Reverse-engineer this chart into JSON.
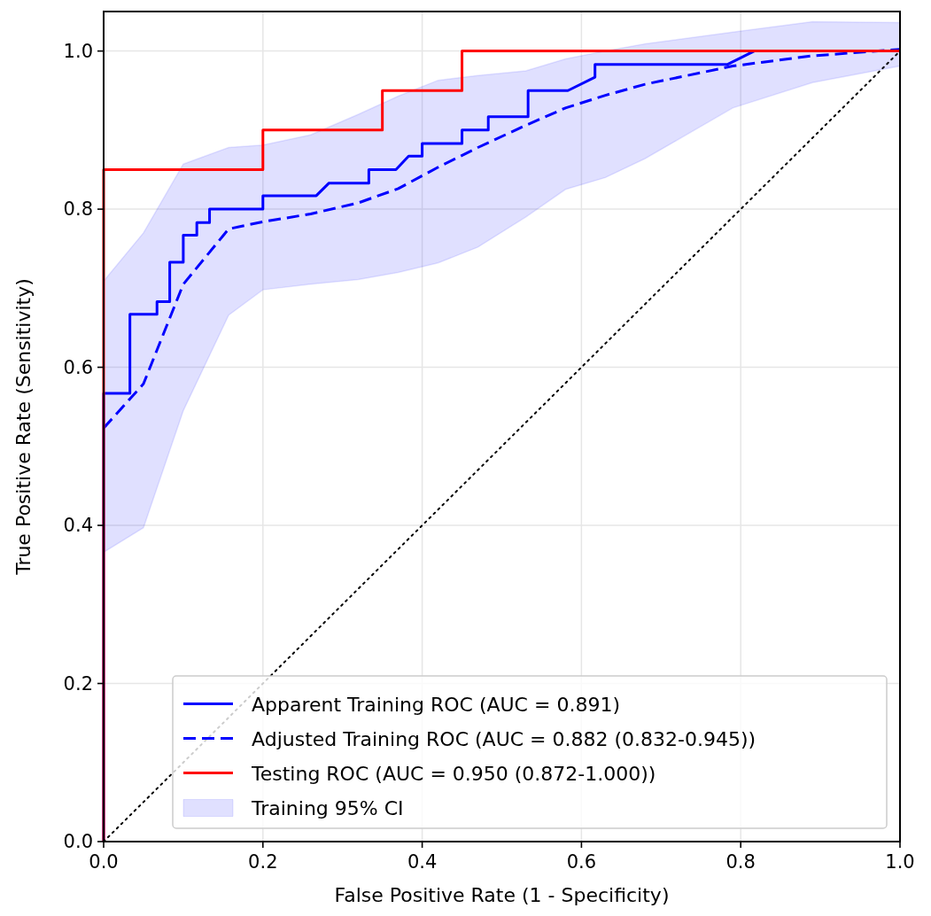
{
  "chart_data": {
    "type": "line",
    "xlabel": "False Positive Rate (1 - Specificity)",
    "ylabel": "True Positive Rate (Sensitivity)",
    "xlim": [
      0,
      1
    ],
    "ylim": [
      0,
      1.05
    ],
    "xticks": [
      {
        "value": 0,
        "label": "0.0"
      },
      {
        "value": 0.2,
        "label": "0.2"
      },
      {
        "value": 0.4,
        "label": "0.4"
      },
      {
        "value": 0.6,
        "label": "0.6"
      },
      {
        "value": 0.8,
        "label": "0.8"
      },
      {
        "value": 1,
        "label": "1.0"
      }
    ],
    "yticks": [
      {
        "value": 0,
        "label": "0.0"
      },
      {
        "value": 0.2,
        "label": "0.2"
      },
      {
        "value": 0.4,
        "label": "0.4"
      },
      {
        "value": 0.6,
        "label": "0.6"
      },
      {
        "value": 0.8,
        "label": "0.8"
      },
      {
        "value": 1,
        "label": "1.0"
      }
    ],
    "grid": true,
    "legend": "bottom right",
    "annotations": [
      "Training 95% CI"
    ],
    "series": [
      {
        "name": "Apparent Training ROC (AUC = 0.891)",
        "color": "#0000ff",
        "line_style": "solid",
        "x": [
          0,
          0,
          0.033,
          0.033,
          0.067,
          0.067,
          0.083,
          0.083,
          0.1,
          0.1,
          0.117,
          0.117,
          0.133,
          0.133,
          0.2,
          0.2,
          0.267,
          0.283,
          0.333,
          0.333,
          0.367,
          0.383,
          0.4,
          0.4,
          0.45,
          0.45,
          0.483,
          0.483,
          0.533,
          0.533,
          0.583,
          0.617,
          0.617,
          0.783,
          0.817,
          1.0
        ],
        "values": [
          0,
          0.567,
          0.567,
          0.667,
          0.667,
          0.683,
          0.683,
          0.733,
          0.733,
          0.767,
          0.767,
          0.783,
          0.783,
          0.8,
          0.8,
          0.817,
          0.817,
          0.833,
          0.833,
          0.85,
          0.85,
          0.867,
          0.867,
          0.883,
          0.883,
          0.9,
          0.9,
          0.917,
          0.917,
          0.95,
          0.95,
          0.967,
          0.983,
          0.983,
          1.0,
          1.0
        ]
      },
      {
        "name": "Adjusted Training ROC (AUC = 0.882 (0.832-0.945))",
        "color": "#0000ff",
        "line_style": "dashed",
        "x": [
          0,
          0.05,
          0.1,
          0.157,
          0.2,
          0.26,
          0.32,
          0.37,
          0.42,
          0.47,
          0.53,
          0.58,
          0.63,
          0.68,
          0.79,
          0.89,
          1.0
        ],
        "values": [
          0.523,
          0.579,
          0.705,
          0.775,
          0.784,
          0.794,
          0.808,
          0.826,
          0.853,
          0.878,
          0.906,
          0.928,
          0.944,
          0.958,
          0.981,
          0.994,
          1.002
        ],
        "lower": [
          0.366,
          0.397,
          0.545,
          0.666,
          0.698,
          0.705,
          0.711,
          0.72,
          0.732,
          0.752,
          0.79,
          0.825,
          0.84,
          0.864,
          0.928,
          0.96,
          0.981
        ],
        "upper": [
          0.709,
          0.77,
          0.857,
          0.878,
          0.881,
          0.894,
          0.92,
          0.943,
          0.963,
          0.969,
          0.975,
          0.99,
          1.0,
          1.009,
          1.024,
          1.037,
          1.036
        ]
      },
      {
        "name": "Testing ROC (AUC = 0.950 (0.872-1.000))",
        "color": "#ff0000",
        "line_style": "solid",
        "x": [
          0,
          0,
          0.2,
          0.2,
          0.35,
          0.35,
          0.45,
          0.45,
          1.0
        ],
        "values": [
          0,
          0.85,
          0.85,
          0.9,
          0.9,
          0.95,
          0.95,
          1.0,
          1.0
        ]
      },
      {
        "color": "#000000",
        "line_style": "dotted",
        "x": [
          0,
          1
        ],
        "values": [
          0,
          1
        ]
      }
    ]
  }
}
